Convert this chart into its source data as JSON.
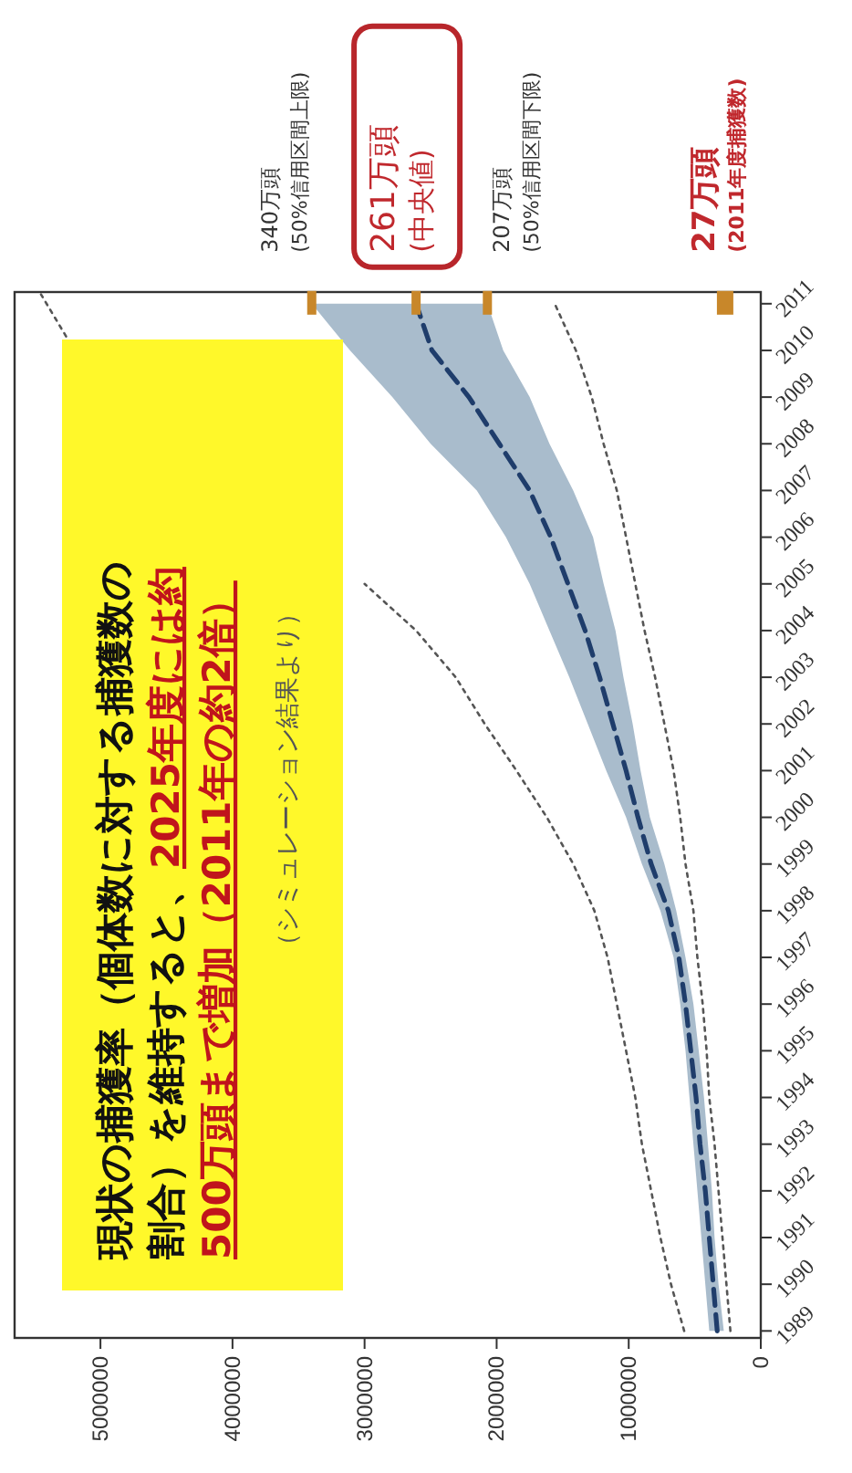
{
  "chart_data": {
    "type": "line",
    "orientation": "horizontal",
    "x": [
      1989,
      1990,
      1991,
      1992,
      1993,
      1994,
      1995,
      1996,
      1997,
      1998,
      1999,
      2000,
      2001,
      2002,
      2003,
      2004,
      2005,
      2006,
      2007,
      2008,
      2009,
      2010,
      2011
    ],
    "ylim": [
      1988.85,
      2011.25
    ],
    "yticks": [
      1989,
      1990,
      1991,
      1992,
      1993,
      1994,
      1995,
      1996,
      1997,
      1998,
      1999,
      2000,
      2001,
      2002,
      2003,
      2004,
      2005,
      2006,
      2007,
      2008,
      2009,
      2010,
      2011
    ],
    "xlim": [
      5650000,
      0
    ],
    "xticks": [
      5000000,
      4000000,
      3000000,
      2000000,
      1000000,
      0
    ],
    "marker": "none",
    "grid": false,
    "series": [
      {
        "color": "#1f3d6b",
        "line_style": "dashed",
        "values": [
          330000,
          360000,
          390000,
          420000,
          460000,
          490000,
          530000,
          570000,
          620000,
          700000,
          830000,
          930000,
          1020000,
          1120000,
          1220000,
          1330000,
          1460000,
          1590000,
          1750000,
          1980000,
          2210000,
          2490000,
          2610000
        ],
        "upper": [
          390000,
          420000,
          450000,
          480000,
          510000,
          540000,
          570000,
          610000,
          660000,
          760000,
          900000,
          1020000,
          1170000,
          1310000,
          1450000,
          1600000,
          1750000,
          1930000,
          2150000,
          2500000,
          2790000,
          3110000,
          3400000
        ],
        "lower": [
          280000,
          320000,
          350000,
          370000,
          400000,
          430000,
          470000,
          510000,
          570000,
          640000,
          730000,
          840000,
          910000,
          970000,
          1040000,
          1100000,
          1190000,
          1270000,
          1420000,
          1600000,
          1750000,
          1950000,
          2070000
        ]
      },
      {
        "color": "#555555",
        "line_style": "dotted",
        "values": [
          230000,
          260000,
          290000,
          320000,
          350000,
          390000,
          410000,
          440000,
          480000,
          510000,
          570000,
          610000,
          660000,
          730000,
          800000,
          880000,
          950000,
          1020000,
          1090000,
          1190000,
          1280000,
          1400000,
          1560000
        ]
      },
      {
        "color": "#555555",
        "line_style": "dotted",
        "x": [
          1989,
          1990,
          1991,
          1992,
          1993,
          1994,
          1995,
          1996,
          1997,
          1998,
          1999,
          2000,
          2001,
          2002,
          2003,
          2004,
          2005
        ],
        "values": [
          580000,
          680000,
          760000,
          830000,
          900000,
          950000,
          1020000,
          1090000,
          1160000,
          1260000,
          1420000,
          1620000,
          1850000,
          2090000,
          2310000,
          2610000,
          3000000
        ]
      },
      {
        "color": "#555555",
        "line_style": "dotted",
        "x": [
          2010.3,
          2011.2
        ],
        "values": [
          5260000,
          5450000
        ]
      }
    ],
    "annotations": [
      {
        "text": "340万頭\n(50%信用区間上限)",
        "x": 3400000,
        "y": 2011
      },
      {
        "text": "261万頭\n(中央値)",
        "x": 2610000,
        "y": 2011
      },
      {
        "text": "207万頭\n(50%信用区間下限)",
        "x": 2070000,
        "y": 2011
      },
      {
        "text": "27万頭\n(2011年度捕獲数)",
        "x": 270000,
        "y": 2011
      },
      "現状の捕獲率（個体数に対する捕獲数の割合）を維持すると、",
      "2025年度には約500万頭まで増加（2011年の約2倍）",
      "（シミュレーション結果より）"
    ]
  }
}
